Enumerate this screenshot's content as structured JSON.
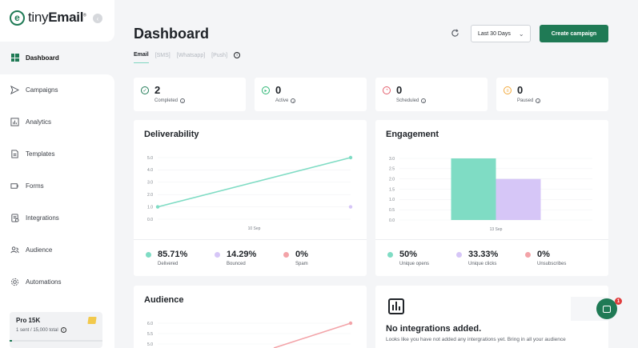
{
  "brand": {
    "name_thin": "tiny",
    "name_bold": "Email",
    "mark": "e"
  },
  "sidebar": {
    "items": [
      {
        "label": "Dashboard",
        "icon": "grid-icon"
      },
      {
        "label": "Campaigns",
        "icon": "send-icon"
      },
      {
        "label": "Analytics",
        "icon": "chart-icon"
      },
      {
        "label": "Templates",
        "icon": "document-icon"
      },
      {
        "label": "Forms",
        "icon": "form-icon"
      },
      {
        "label": "Integrations",
        "icon": "plug-icon"
      },
      {
        "label": "Audience",
        "icon": "users-icon"
      },
      {
        "label": "Automations",
        "icon": "gear-icon"
      }
    ],
    "plan": {
      "name": "Pro 15K",
      "usage": "1 sent / 15,000 total"
    }
  },
  "header": {
    "title": "Dashboard",
    "date_range": "Last 30 Days",
    "create_label": "Create campaign"
  },
  "tabs": [
    "Email",
    "[SMS]",
    "[Whatsapp]",
    "[Push]"
  ],
  "stats": [
    {
      "value": "2",
      "label": "Completed",
      "color": "#1f7a55",
      "icon": "check-circle-icon"
    },
    {
      "value": "0",
      "label": "Active",
      "color": "#2bb673",
      "icon": "play-circle-icon"
    },
    {
      "value": "0",
      "label": "Scheduled",
      "color": "#e35d6a",
      "icon": "clock-icon"
    },
    {
      "value": "0",
      "label": "Paused",
      "color": "#f2a93b",
      "icon": "pause-circle-icon"
    }
  ],
  "deliverability": {
    "title": "Deliverability",
    "legend": [
      {
        "value": "85.71%",
        "label": "Delivered",
        "color": "#7fdcc4"
      },
      {
        "value": "14.29%",
        "label": "Bounced",
        "color": "#d6c6f7"
      },
      {
        "value": "0%",
        "label": "Spam",
        "color": "#f3a3a8"
      }
    ]
  },
  "engagement": {
    "title": "Engagement",
    "legend": [
      {
        "value": "50%",
        "label": "Unique opens",
        "color": "#7fdcc4"
      },
      {
        "value": "33.33%",
        "label": "Unique clicks",
        "color": "#d6c6f7"
      },
      {
        "value": "0%",
        "label": "Unsubscribes",
        "color": "#f3a3a8"
      }
    ]
  },
  "audience": {
    "title": "Audience"
  },
  "integrations": {
    "title": "No integrations added.",
    "subtitle": "Looks like you have not added any intergrations yet. Bring in all your audience"
  },
  "chat": {
    "badge": "1"
  },
  "chart_data": [
    {
      "type": "line",
      "title": "Deliverability",
      "x": [
        "",
        "10 Sep",
        ""
      ],
      "series": [
        {
          "name": "Delivered",
          "values": [
            1.0,
            null,
            5.0
          ],
          "color": "#7fdcc4"
        },
        {
          "name": "Bounced",
          "values": [
            null,
            null,
            1.0
          ],
          "color": "#d6c6f7"
        }
      ],
      "ylim": [
        0,
        5.0
      ],
      "yticks": [
        "0.0",
        "1.0",
        "2.0",
        "3.0",
        "4.0",
        "5.0"
      ]
    },
    {
      "type": "bar",
      "title": "Engagement",
      "categories": [
        "13 Sep"
      ],
      "series": [
        {
          "name": "Unique opens",
          "values": [
            3.0
          ],
          "color": "#7fdcc4"
        },
        {
          "name": "Unique clicks",
          "values": [
            2.0
          ],
          "color": "#d6c6f7"
        }
      ],
      "ylim": [
        0,
        3.0
      ],
      "yticks": [
        "0.0",
        "0.5",
        "1.0",
        "1.5",
        "2.0",
        "2.5",
        "3.0"
      ]
    },
    {
      "type": "line",
      "title": "Audience",
      "series": [
        {
          "name": "",
          "values": [
            null,
            6.0
          ],
          "color": "#f3a3a8"
        }
      ],
      "yticks": [
        "5.0",
        "5.5",
        "6.0"
      ]
    }
  ]
}
